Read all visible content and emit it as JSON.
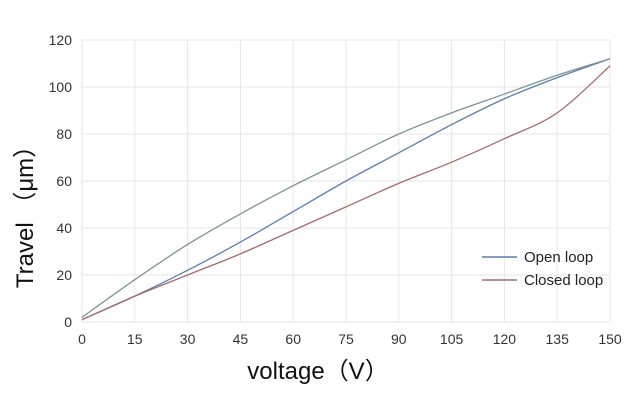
{
  "chart_data": {
    "type": "line",
    "xlabel": "voltage（V）",
    "ylabel": "Travel （μm）",
    "xlim": [
      0,
      150
    ],
    "ylim": [
      0,
      120
    ],
    "x_ticks": [
      0,
      15,
      30,
      45,
      60,
      75,
      90,
      105,
      120,
      135,
      150
    ],
    "y_ticks": [
      0,
      20,
      40,
      60,
      80,
      100,
      120
    ],
    "grid": true,
    "legend_position": "bottom-right",
    "series": [
      {
        "name": "Open loop",
        "color": "#5b7fae",
        "x": [
          0,
          15,
          30,
          45,
          60,
          75,
          90,
          105,
          120,
          135,
          150
        ],
        "y": [
          1,
          11,
          22,
          34,
          47,
          60,
          72,
          84,
          95,
          104,
          112
        ]
      },
      {
        "name": "Closed loop",
        "color": "#a86a6a",
        "x": [
          0,
          15,
          30,
          45,
          60,
          75,
          90,
          105,
          120,
          135,
          150
        ],
        "y": [
          1,
          11,
          20,
          29,
          39,
          49,
          59,
          68,
          78,
          89,
          109
        ]
      },
      {
        "name": "",
        "color": "#7f9393",
        "x": [
          0,
          15,
          30,
          45,
          60,
          75,
          90,
          105,
          120,
          135,
          150
        ],
        "y": [
          2,
          18,
          33,
          46,
          58,
          69,
          80,
          89,
          97,
          105,
          112
        ]
      }
    ]
  }
}
